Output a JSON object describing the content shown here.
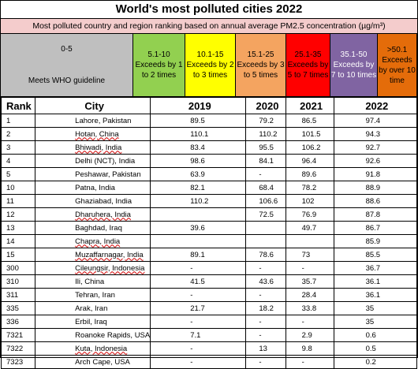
{
  "title": "World's most polluted cities 2022",
  "subtitle": "Most polluted country and region ranking based on annual average PM2.5 concentration (µg/m³)",
  "legend": {
    "who_range": "0-5",
    "who_label": "Meets WHO guideline",
    "cells": [
      {
        "text": "5.1-10 Exceeds by 1 to 2 times",
        "color": "#92d050"
      },
      {
        "text": "10.1-15 Exceeds by 2 to 3 times",
        "color": "#ffff00"
      },
      {
        "text": "15.1-25 Exceeds by 3 to 5 times",
        "color": "#f4a460"
      },
      {
        "text": "25.1-35 Exceeds by 5 to 7 times",
        "color": "#ff0000"
      },
      {
        "text": "35.1-50 Exceeds by 7 to 10 times",
        "color": "#8064a2"
      },
      {
        "text": ">50.1 Exceeds by over 10 time",
        "color": "#e46c0a"
      }
    ]
  },
  "headers": {
    "rank": "Rank",
    "city": "City",
    "y2019": "2019",
    "y2020": "2020",
    "y2021": "2021",
    "y2022": "2022"
  },
  "rows": [
    {
      "rank": "1",
      "city": "Lahore, Pakistan",
      "y2019": "89.5",
      "y2020": "79.2",
      "y2021": "86.5",
      "y2022": "97.4"
    },
    {
      "rank": "2",
      "city": "Hotan, China",
      "y2019": "110.1",
      "y2020": "110.2",
      "y2021": "101.5",
      "y2022": "94.3"
    },
    {
      "rank": "3",
      "city": "Bhiwadi, India",
      "y2019": "83.4",
      "y2020": "95.5",
      "y2021": "106.2",
      "y2022": "92.7"
    },
    {
      "rank": "4",
      "city": "Delhi (NCT), India",
      "y2019": "98.6",
      "y2020": "84.1",
      "y2021": "96.4",
      "y2022": "92.6"
    },
    {
      "rank": "5",
      "city": "Peshawar, Pakistan",
      "y2019": "63.9",
      "y2020": "-",
      "y2021": "89.6",
      "y2022": "91.8"
    },
    {
      "rank": "10",
      "city": "Patna, India",
      "y2019": "82.1",
      "y2020": "68.4",
      "y2021": "78.2",
      "y2022": "88.9"
    },
    {
      "rank": "11",
      "city": "Ghaziabad, India",
      "y2019": "110.2",
      "y2020": "106.6",
      "y2021": "102",
      "y2022": "88.6"
    },
    {
      "rank": "12",
      "city": "Dharuhera, India",
      "y2019": "",
      "y2020": "72.5",
      "y2021": "76.9",
      "y2022": "87.8"
    },
    {
      "rank": "13",
      "city": "Baghdad, Iraq",
      "y2019": "39.6",
      "y2020": "",
      "y2021": "49.7",
      "y2022": "86.7"
    },
    {
      "rank": "14",
      "city": "Chapra, India",
      "y2019": "",
      "y2020": "",
      "y2021": "",
      "y2022": "85.9"
    },
    {
      "rank": "15",
      "city": "Muzaffarnagar, India",
      "y2019": "89.1",
      "y2020": "78.6",
      "y2021": "73",
      "y2022": "85.5"
    },
    {
      "rank": "300",
      "city": "Cileungsir, Indonesia",
      "y2019": "-",
      "y2020": "-",
      "y2021": "-",
      "y2022": "36.7"
    },
    {
      "rank": "310",
      "city": "Ili, China",
      "y2019": "41.5",
      "y2020": "43.6",
      "y2021": "35.7",
      "y2022": "36.1"
    },
    {
      "rank": "311",
      "city": "Tehran, Iran",
      "y2019": "-",
      "y2020": "-",
      "y2021": "28.4",
      "y2022": "36.1"
    },
    {
      "rank": "335",
      "city": "Arak, Iran",
      "y2019": "21.7",
      "y2020": "18.2",
      "y2021": "33.8",
      "y2022": "35"
    },
    {
      "rank": "336",
      "city": "Erbil, Iraq",
      "y2019": "-",
      "y2020": "-",
      "y2021": "-",
      "y2022": "35"
    },
    {
      "rank": "7321",
      "city": "Roanoke Rapids, USA",
      "y2019": "7.1",
      "y2020": "-",
      "y2021": "2.9",
      "y2022": "0.6"
    },
    {
      "rank": "7322",
      "city": "Kuta, Indonesia",
      "y2019": "-",
      "y2020": "13",
      "y2021": "9.8",
      "y2022": "0.5"
    },
    {
      "rank": "7323",
      "city": "Arch Cape, USA",
      "y2019": "-",
      "y2020": "-",
      "y2021": "-",
      "y2022": "0.2"
    }
  ]
}
